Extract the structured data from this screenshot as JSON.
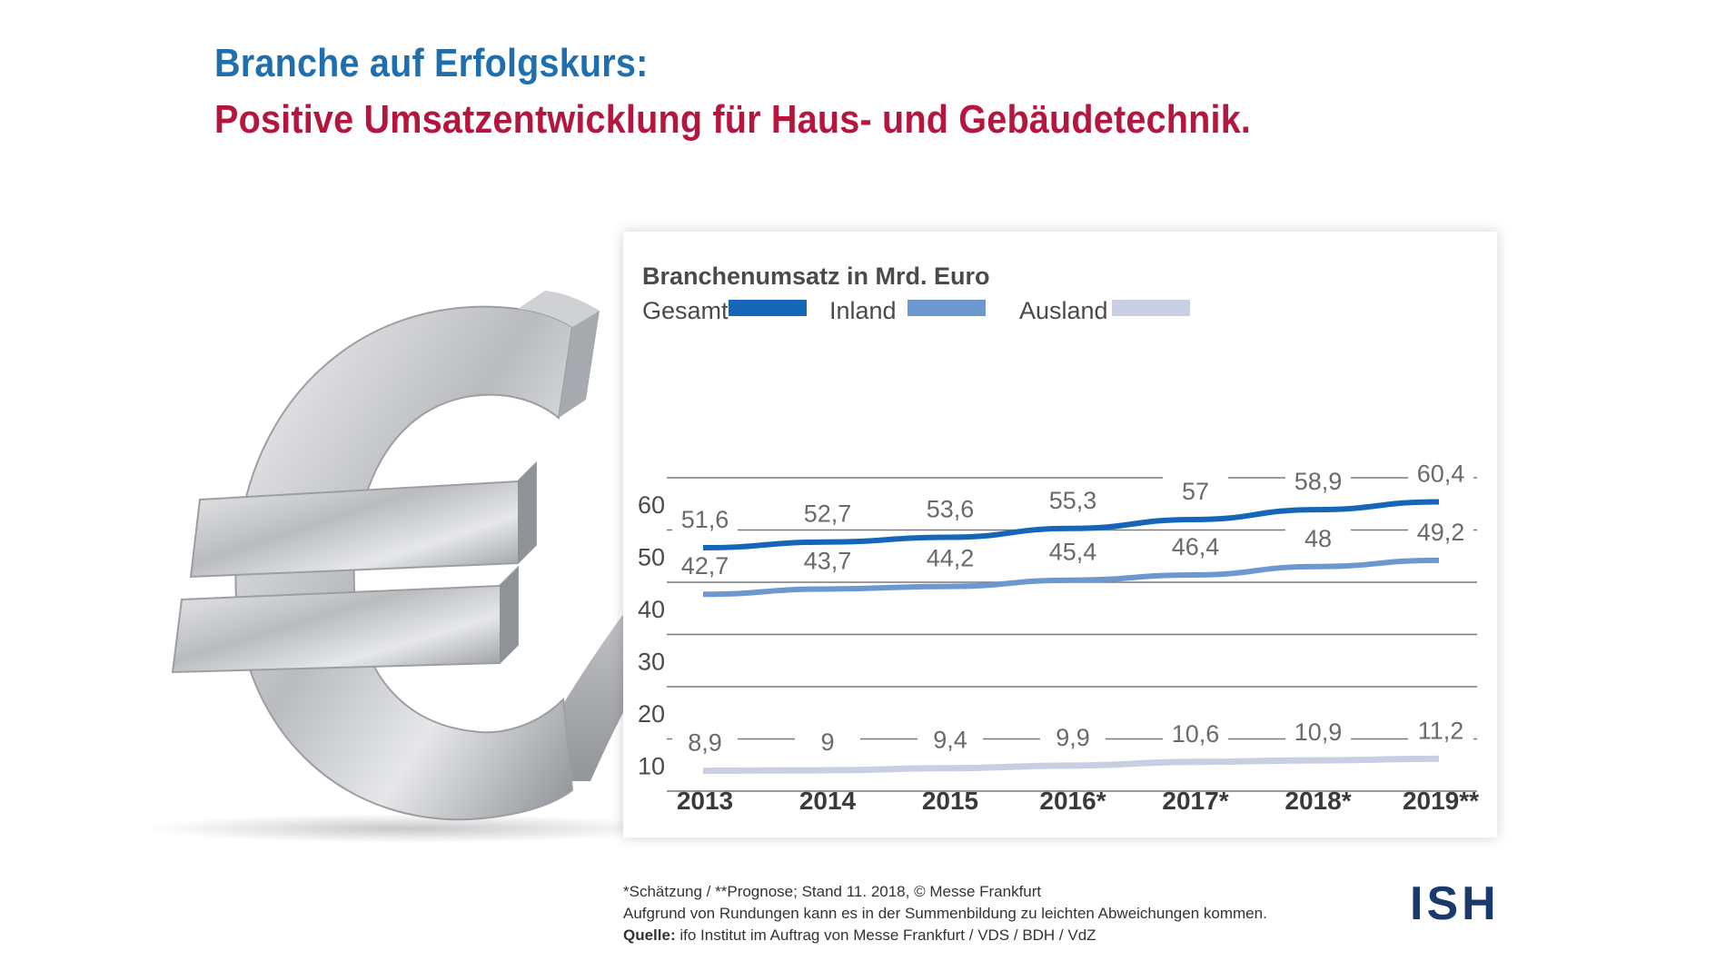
{
  "headline": {
    "line1": "Branche auf Erfolgskurs:",
    "line2": "Positive Umsatzentwicklung für Haus- und Gebäudetechnik."
  },
  "colors": {
    "headline_blue": "#1f6fae",
    "headline_red": "#b5163e",
    "gesamt": "#1565b8",
    "inland": "#6d97cf",
    "ausland": "#c8cfe2",
    "logo": "#1a3a6b"
  },
  "chart_data": {
    "type": "line",
    "title": "Branchenumsatz in Mrd. Euro",
    "categories": [
      "2013",
      "2014",
      "2015",
      "2016*",
      "2017*",
      "2018*",
      "2019**"
    ],
    "yticks": [
      "10",
      "20",
      "30",
      "40",
      "50",
      "60"
    ],
    "ylim": [
      5,
      65
    ],
    "grid": true,
    "legend_position": "top",
    "series": [
      {
        "name": "Gesamt",
        "values": [
          51.6,
          52.7,
          53.6,
          55.3,
          57,
          58.9,
          60.4
        ],
        "labels": [
          "51,6",
          "52,7",
          "53,6",
          "55,3",
          "57",
          "58,9",
          "60,4"
        ],
        "color": "#1565b8"
      },
      {
        "name": "Inland",
        "values": [
          42.7,
          43.7,
          44.2,
          45.4,
          46.4,
          48,
          49.2
        ],
        "labels": [
          "42,7",
          "43,7",
          "44,2",
          "45,4",
          "46,4",
          "48",
          "49,2"
        ],
        "color": "#6d97cf"
      },
      {
        "name": "Ausland",
        "values": [
          8.9,
          9,
          9.4,
          9.9,
          10.6,
          10.9,
          11.2
        ],
        "labels": [
          "8,9",
          "9",
          "9,4",
          "9,9",
          "10,6",
          "10,9",
          "11,2"
        ],
        "color": "#c8cfe2"
      }
    ]
  },
  "footer": {
    "line1": "*Schätzung / **Prognose; Stand 11. 2018, © Messe Frankfurt",
    "line2": "Aufgrund von Rundungen kann es in der Summenbildung zu leichten Abweichungen kommen.",
    "source_label": "Quelle:",
    "source_text": " ifo Institut im Auftrag von Messe Frankfurt / VDS / BDH / VdZ"
  },
  "logo": {
    "text": "ISH"
  },
  "illustration": {
    "icon": "euro-arrow-icon"
  }
}
